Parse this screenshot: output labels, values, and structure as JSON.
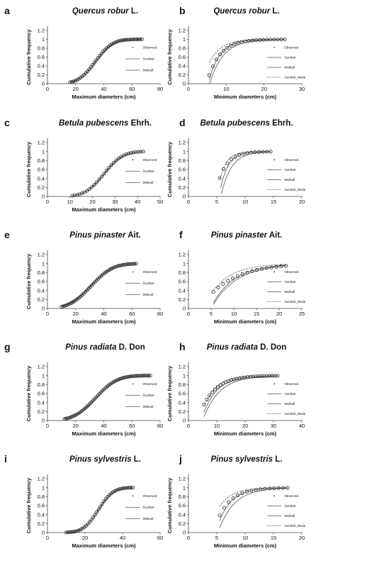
{
  "colors": {
    "series_line": "#555555",
    "marker": "#222222",
    "axis": "#444444"
  },
  "chart_data": [
    {
      "panel": "a",
      "type": "line",
      "title": "Quercus robur",
      "title_suffix": " L.",
      "xlabel": "Maximum diameters (cm)",
      "ylabel": "Cumulative frequency",
      "xlim": [
        0,
        80
      ],
      "ylim": [
        0,
        1.2
      ],
      "xticks": [
        "0",
        "20",
        "40",
        "60",
        "80"
      ],
      "yticks": [
        "0",
        "0.2",
        "0.4",
        "0.6",
        "0.8",
        "1",
        "1.2"
      ],
      "legend": [
        "Observed",
        "Gumbel",
        "Weibull"
      ],
      "observed": {
        "x_start": 16,
        "x_end": 67,
        "n": 42,
        "mu": 34,
        "sigma": 9.5
      },
      "series": [
        {
          "name": "Gumbel",
          "dist": "normal",
          "mu": 34,
          "sigma": 9.5,
          "x_start": 16,
          "x_end": 67,
          "style": "solid"
        },
        {
          "name": "Weibull",
          "dist": "normal",
          "mu": 34.5,
          "sigma": 9.8,
          "x_start": 16,
          "x_end": 67,
          "style": "solid"
        }
      ]
    },
    {
      "panel": "b",
      "type": "line",
      "title": "Quercus robur",
      "title_suffix": " L.",
      "xlabel": "Minimum diameters (cm)",
      "ylabel": "Cumulative frequency",
      "xlim": [
        0,
        30
      ],
      "ylim": [
        0,
        1.2
      ],
      "xticks": [
        "0",
        "10",
        "20",
        "30"
      ],
      "yticks": [
        "0",
        "0.2",
        "0.4",
        "0.6",
        "0.8",
        "1",
        "1.2"
      ],
      "legend": [
        "Observed",
        "Gumbel",
        "Weibull",
        "Gumbel_Mode"
      ],
      "observed": {
        "x_start": 5.5,
        "x_end": 25.5,
        "n": 22,
        "x0": 4.8,
        "lambda": 3.3
      },
      "series": [
        {
          "name": "Gumbel",
          "dist": "exp",
          "x0": 5.2,
          "lambda": 3.0,
          "x_start": 5.5,
          "x_end": 25.5,
          "style": "solid"
        },
        {
          "name": "Weibull",
          "dist": "exp",
          "x0": 5.6,
          "lambda": 3.6,
          "x_start": 5.5,
          "x_end": 25.5,
          "style": "solid"
        },
        {
          "name": "Gumbel_Mode",
          "dist": "exp",
          "x0": 3.6,
          "lambda": 3.0,
          "x_start": 5.5,
          "x_end": 25.5,
          "style": "dashed"
        }
      ]
    },
    {
      "panel": "c",
      "type": "line",
      "title": "Betula pubescens",
      "title_suffix": " Ehrh.",
      "xlabel": "Maximum diameters (cm)",
      "ylabel": "Cumulative frequency",
      "xlim": [
        0,
        50
      ],
      "ylim": [
        0,
        1.2
      ],
      "xticks": [
        "0",
        "10",
        "20",
        "30",
        "40",
        "50"
      ],
      "yticks": [
        "0",
        "0.2",
        "0.4",
        "0.6",
        "0.8",
        "1",
        "1.2"
      ],
      "legend": [
        "Observed",
        "Gumbel",
        "Weibull"
      ],
      "observed": {
        "x_start": 11,
        "x_end": 42.5,
        "n": 30,
        "mu": 25,
        "sigma": 6.5
      },
      "series": [
        {
          "name": "Gumbel",
          "dist": "normal",
          "mu": 25,
          "sigma": 6.5,
          "x_start": 11,
          "x_end": 42.5,
          "style": "solid"
        },
        {
          "name": "Weibull",
          "dist": "normal",
          "mu": 25.3,
          "sigma": 6.7,
          "x_start": 11,
          "x_end": 42.5,
          "style": "solid"
        }
      ]
    },
    {
      "panel": "d",
      "type": "line",
      "title": "Betula pubescens",
      "title_suffix": " Ehrh.",
      "xlabel": "",
      "ylabel": "Cumulative frequency",
      "xlim": [
        0,
        20
      ],
      "ylim": [
        0,
        1.2
      ],
      "xticks": [
        "0",
        "5",
        "10",
        "15",
        "20"
      ],
      "yticks": [
        "0",
        "0.2",
        "0.4",
        "0.6",
        "0.8",
        "1",
        "1.2"
      ],
      "legend": [
        "Observed",
        "Gumbel",
        "Weibull",
        "Gumbel_Mode"
      ],
      "observed": {
        "x_start": 5.5,
        "x_end": 14.5,
        "n": 14,
        "x0": 4.6,
        "lambda": 1.7
      },
      "series": [
        {
          "name": "Gumbel",
          "dist": "exp",
          "x0": 5.4,
          "lambda": 1.4,
          "x_start": 5.7,
          "x_end": 14.5,
          "style": "solid"
        },
        {
          "name": "Weibull",
          "dist": "exp",
          "x0": 5.7,
          "lambda": 1.8,
          "x_start": 5.8,
          "x_end": 14.5,
          "style": "solid"
        },
        {
          "name": "Gumbel_Mode",
          "dist": "exp",
          "x0": 5.0,
          "lambda": 1.2,
          "x_start": 5.6,
          "x_end": 14.5,
          "style": "dashed"
        }
      ]
    },
    {
      "panel": "e",
      "type": "line",
      "title": "Pinus pinaster",
      "title_suffix": " Ait.",
      "xlabel": "Maximum diameters (cm)",
      "ylabel": "Cumulative frequency",
      "xlim": [
        0,
        80
      ],
      "ylim": [
        0,
        1.2
      ],
      "xticks": [
        "0",
        "20",
        "40",
        "60",
        "80"
      ],
      "yticks": [
        "0",
        "0.2",
        "0.4",
        "0.6",
        "0.8",
        "1",
        "1.2"
      ],
      "legend": [
        "Observed",
        "Gumbel",
        "Weibull"
      ],
      "observed": {
        "x_start": 10,
        "x_end": 63,
        "n": 48,
        "mu": 31,
        "sigma": 12
      },
      "series": [
        {
          "name": "Gumbel",
          "dist": "normal",
          "mu": 31,
          "sigma": 12,
          "x_start": 10,
          "x_end": 63,
          "style": "solid"
        },
        {
          "name": "Weibull",
          "dist": "normal",
          "mu": 30.5,
          "sigma": 12.4,
          "x_start": 10,
          "x_end": 63,
          "style": "solid"
        }
      ]
    },
    {
      "panel": "f",
      "type": "line",
      "title": "Pinus pinaster",
      "title_suffix": " Ait.",
      "xlabel": "Minimum diameters (cm)",
      "ylabel": "",
      "xlim": [
        0,
        25
      ],
      "ylim": [
        0,
        1.2
      ],
      "xticks": [
        "0",
        "5",
        "10",
        "15",
        "20",
        "25"
      ],
      "yticks": [
        "0",
        "0.2",
        "0.4",
        "0.6",
        "0.8",
        "1",
        "1.2"
      ],
      "legend": [
        "Observed",
        "Gumbel",
        "Weibull",
        "Gumbel_Mode"
      ],
      "observed": {
        "x_start": 5.5,
        "x_end": 21.5,
        "n": 16,
        "x0": 2.5,
        "lambda": 6.5
      },
      "series": [
        {
          "name": "Gumbel",
          "dist": "exp",
          "x0": 4.8,
          "lambda": 5.0,
          "x_start": 5.5,
          "x_end": 21.5,
          "style": "solid"
        },
        {
          "name": "Weibull",
          "dist": "exp",
          "x0": 5.0,
          "lambda": 5.5,
          "x_start": 5.5,
          "x_end": 21.5,
          "style": "solid"
        },
        {
          "name": "Gumbel_Mode",
          "dist": "exp",
          "x0": 3.2,
          "lambda": 4.5,
          "x_start": 5.5,
          "x_end": 21.5,
          "style": "dashed"
        }
      ]
    },
    {
      "panel": "g",
      "type": "line",
      "title": "Pinus radiata",
      "title_suffix": " D. Don",
      "xlabel": "Maximum diameters (cm)",
      "ylabel": "Cumulative frequency",
      "xlim": [
        0,
        80
      ],
      "ylim": [
        0,
        1.2
      ],
      "xticks": [
        "0",
        "20",
        "40",
        "60",
        "80"
      ],
      "yticks": [
        "0",
        "0.2",
        "0.4",
        "0.6",
        "0.8",
        "1",
        "1.2"
      ],
      "legend": [
        "Observed",
        "Gumbel",
        "Weibull"
      ],
      "observed": {
        "x_start": 12,
        "x_end": 73,
        "n": 55,
        "mu": 34,
        "sigma": 12
      },
      "series": [
        {
          "name": "Gumbel",
          "dist": "normal",
          "mu": 34,
          "sigma": 12,
          "x_start": 12,
          "x_end": 73,
          "style": "solid"
        },
        {
          "name": "Weibull",
          "dist": "normal",
          "mu": 35,
          "sigma": 12.5,
          "x_start": 12,
          "x_end": 73,
          "style": "solid"
        }
      ]
    },
    {
      "panel": "h",
      "type": "line",
      "title": "Pinus radiata",
      "title_suffix": " D. Don",
      "xlabel": "Minimum diameters (cm)",
      "ylabel": "Cumulative frequency",
      "xlim": [
        0,
        40
      ],
      "ylim": [
        0,
        1.2
      ],
      "xticks": [
        "0",
        "10",
        "20",
        "30",
        "40"
      ],
      "yticks": [
        "0",
        "0.2",
        "0.4",
        "0.6",
        "0.8",
        "1",
        "1.2"
      ],
      "legend": [
        "Observed",
        "Gumbel",
        "Weibull",
        "Gumbel_Mode"
      ],
      "observed": {
        "x_start": 5.5,
        "x_end": 31.5,
        "n": 28,
        "x0": 3.2,
        "lambda": 5.2
      },
      "series": [
        {
          "name": "Gumbel",
          "dist": "exp",
          "x0": 4.5,
          "lambda": 5.0,
          "x_start": 5.5,
          "x_end": 31.5,
          "style": "solid"
        },
        {
          "name": "Weibull",
          "dist": "exp",
          "x0": 5.0,
          "lambda": 5.8,
          "x_start": 5.5,
          "x_end": 31.5,
          "style": "solid"
        },
        {
          "name": "Gumbel_Mode",
          "dist": "exp",
          "x0": 3.8,
          "lambda": 4.6,
          "x_start": 5.5,
          "x_end": 31.5,
          "style": "dashed"
        }
      ]
    },
    {
      "panel": "i",
      "type": "line",
      "title": "Pinus sylvestris",
      "title_suffix": " L.",
      "xlabel": "Maximum diameters (cm)",
      "ylabel": "Cumulative frequency",
      "xlim": [
        0,
        60
      ],
      "ylim": [
        0,
        1.2
      ],
      "xticks": [
        "0",
        "20",
        "40",
        "60"
      ],
      "yticks": [
        "0",
        "0.2",
        "0.4",
        "0.6",
        "0.8",
        "1",
        "1.2"
      ],
      "legend": [
        "Observed",
        "Gumbel",
        "Weibull"
      ],
      "observed": {
        "x_start": 10,
        "x_end": 45.5,
        "n": 38,
        "mu": 27,
        "sigma": 6.2
      },
      "series": [
        {
          "name": "Gumbel",
          "dist": "normal",
          "mu": 27,
          "sigma": 6.2,
          "x_start": 10,
          "x_end": 45.5,
          "style": "solid"
        },
        {
          "name": "Weibull",
          "dist": "normal",
          "mu": 27.2,
          "sigma": 6.4,
          "x_start": 10,
          "x_end": 45.5,
          "style": "solid"
        }
      ]
    },
    {
      "panel": "j",
      "type": "line",
      "title": "Pinus sylvestris",
      "title_suffix": " L.",
      "xlabel": "Minimum diameters (cm)",
      "ylabel": "Cumulative frequency",
      "xlim": [
        0,
        20
      ],
      "ylim": [
        0,
        1.2
      ],
      "xticks": [
        "0",
        "5",
        "10",
        "15",
        "20"
      ],
      "yticks": [
        "0",
        "0.2",
        "0.4",
        "0.6",
        "0.8",
        "1",
        "1.2"
      ],
      "legend": [
        "Observed",
        "Gumbel",
        "Weibull",
        "Gumbel_Mode"
      ],
      "observed": {
        "x_start": 5.5,
        "x_end": 17.5,
        "n": 16,
        "x0": 4.3,
        "lambda": 2.5
      },
      "series": [
        {
          "name": "Gumbel",
          "dist": "exp",
          "x0": 4.8,
          "lambda": 2.3,
          "x_start": 5.5,
          "x_end": 17.5,
          "style": "solid"
        },
        {
          "name": "Weibull",
          "dist": "exp",
          "x0": 5.2,
          "lambda": 2.8,
          "x_start": 5.5,
          "x_end": 17.5,
          "style": "solid"
        },
        {
          "name": "Gumbel_Mode",
          "dist": "exp",
          "x0": 3.6,
          "lambda": 2.2,
          "x_start": 5.5,
          "x_end": 17.5,
          "style": "dashed"
        }
      ]
    }
  ]
}
